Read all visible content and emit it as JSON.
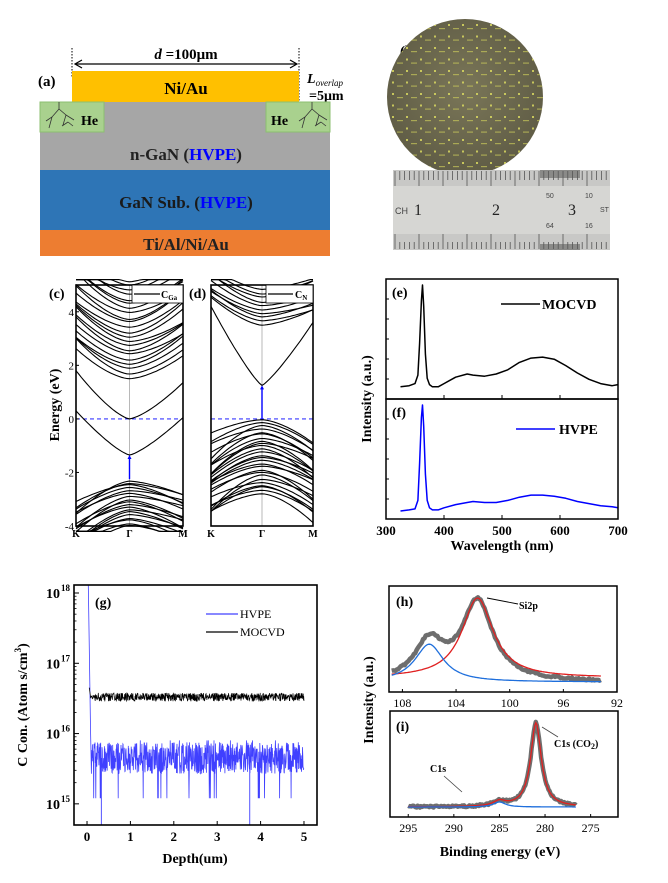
{
  "figure": {
    "panel_a": {
      "label": "(a)",
      "dimension_d": "d",
      "dimension_value": " =100μm",
      "overlap_L": "L",
      "overlap_sub": "overlap",
      "overlap_value": "=5μm",
      "layers": [
        {
          "name": "Ni/Au",
          "color": "#ffc000"
        },
        {
          "name": "n-GaN",
          "suffix_open": " (",
          "highlight": "HVPE",
          "suffix_close": ")",
          "color": "#a6a6a6"
        },
        {
          "name": "GaN Sub.",
          "suffix_open": " (",
          "highlight": "HVPE",
          "suffix_close": ")",
          "color": "#2e75b6"
        },
        {
          "name": "Ti/Al/Ni/Au",
          "color": "#ed7d31"
        }
      ],
      "implant_label": "He",
      "implant_color": "#a9d18e",
      "highlight_color": "#0000ff"
    },
    "panel_b": {
      "label": "(b)",
      "ruler_marks": [
        "CH",
        "1",
        "2",
        "3",
        "ST"
      ],
      "ruler_small": [
        "50",
        "10",
        "64",
        "16"
      ]
    }
  },
  "chart_data": [
    {
      "id": "c",
      "type": "line",
      "title": "(c)",
      "legend": "C",
      "legend_sub": "Ga",
      "ylabel": "Energy (eV)",
      "xticks": [
        "K",
        "Γ",
        "M"
      ],
      "yticks": [
        -4,
        -2,
        0,
        2,
        4
      ],
      "ylim": [
        -4,
        5
      ],
      "fermi_level": 0,
      "gap_arrow": {
        "from": -2.25,
        "to": -1.35
      },
      "cbm": -1.35,
      "vbm": -2.25,
      "defect_band_gamma": 0
    },
    {
      "id": "d",
      "type": "line",
      "title": "(d)",
      "legend": "C",
      "legend_sub": "N",
      "xticks": [
        "K",
        "Γ",
        "M"
      ],
      "ylim": [
        -4,
        5
      ],
      "fermi_level": 0,
      "gap_arrow": {
        "from": 0,
        "to": 1.25
      },
      "cbm": 1.25,
      "vbm": 0
    },
    {
      "id": "e",
      "type": "line",
      "title": "(e)",
      "series": [
        {
          "name": "MOCVD",
          "color": "#000000",
          "x": [
            325,
            340,
            350,
            355,
            358,
            361,
            363,
            365,
            368,
            371,
            375,
            380,
            390,
            400,
            420,
            440,
            450,
            470,
            490,
            510,
            530,
            550,
            570,
            590,
            610,
            630,
            650,
            670,
            690,
            700
          ],
          "y": [
            0.04,
            0.05,
            0.07,
            0.15,
            0.45,
            0.85,
            1.0,
            0.8,
            0.35,
            0.12,
            0.06,
            0.04,
            0.04,
            0.07,
            0.13,
            0.16,
            0.15,
            0.14,
            0.16,
            0.2,
            0.27,
            0.31,
            0.32,
            0.3,
            0.24,
            0.17,
            0.11,
            0.07,
            0.05,
            0.06
          ]
        }
      ],
      "ylabel": "Intensity (a.u.)"
    },
    {
      "id": "f",
      "type": "line",
      "title": "(f)",
      "series": [
        {
          "name": "HVPE",
          "color": "#0000ff",
          "x": [
            325,
            340,
            350,
            355,
            358,
            361,
            363,
            365,
            368,
            371,
            375,
            380,
            390,
            400,
            420,
            440,
            450,
            470,
            490,
            510,
            530,
            550,
            570,
            590,
            610,
            630,
            650,
            670,
            690,
            700
          ],
          "y": [
            0.0,
            0.01,
            0.02,
            0.1,
            0.45,
            0.88,
            1.0,
            0.8,
            0.35,
            0.1,
            0.03,
            0.01,
            0.01,
            0.03,
            0.06,
            0.08,
            0.09,
            0.08,
            0.08,
            0.1,
            0.13,
            0.15,
            0.15,
            0.14,
            0.12,
            0.09,
            0.07,
            0.05,
            0.04,
            0.03
          ]
        }
      ],
      "xlabel": "Wavelength (nm)",
      "xlim": [
        300,
        700
      ],
      "xticks": [
        300,
        400,
        500,
        600,
        700
      ]
    },
    {
      "id": "g",
      "type": "line",
      "title": "(g)",
      "xlabel": "Depth(um)",
      "ylabel": "C Con. (Atoms/cm³)",
      "ylabel_main": "C Con. (Atom s/cm",
      "ylabel_sup": "3",
      "ylabel_close": ")",
      "yscale": "log",
      "ylim": [
        500000000000000.0,
        1.3e+18
      ],
      "xlim": [
        -0.3,
        5.3
      ],
      "xticks": [
        0,
        1,
        2,
        3,
        4,
        5
      ],
      "yticks": [
        {
          "base": "10",
          "exp": "15"
        },
        {
          "base": "10",
          "exp": "16"
        },
        {
          "base": "10",
          "exp": "17"
        },
        {
          "base": "10",
          "exp": "18"
        }
      ],
      "series": [
        {
          "name": "HVPE",
          "color": "#4040ff",
          "surface_peak": 1.3e+18,
          "baseline": 4500000000000000.0,
          "noise_range": [
            2000000000000000.0,
            8000000000000000.0
          ],
          "x_range": [
            0.03,
            5.0
          ]
        },
        {
          "name": "MOCVD",
          "color": "#000000",
          "surface_peak": 4.5e+16,
          "baseline": 3.3e+16,
          "noise_range": [
            2.7e+16,
            4.2e+16
          ],
          "x_range": [
            0.05,
            5.0
          ]
        }
      ]
    },
    {
      "id": "h",
      "type": "line",
      "title": "(h)",
      "annotation": "Si2p",
      "xlim": [
        109,
        92
      ],
      "xticks": [
        108,
        104,
        100,
        96,
        92
      ],
      "peaks": [
        {
          "name": "fit_high",
          "center": 106.0,
          "height": 0.45,
          "color": "#1f6fdc"
        },
        {
          "name": "fit_main",
          "center": 102.4,
          "height": 0.95,
          "color": "#e02020"
        }
      ],
      "data_range": [
        108.8,
        93.2
      ],
      "data_color": "#555555"
    },
    {
      "id": "i",
      "type": "line",
      "title": "(i)",
      "xlabel": "Binding energy (eV)",
      "ylabel": "Intensity (a.u.)",
      "xlim": [
        297,
        272
      ],
      "xticks": [
        295,
        290,
        285,
        280,
        275
      ],
      "annotations": [
        {
          "text": "C1s",
          "x": 285
        },
        {
          "text": "C1s (CO",
          "sub": "2",
          "close": ")",
          "x": 281
        }
      ],
      "peaks": [
        {
          "name": "C1s",
          "center": 285,
          "height": 0.06,
          "color": "#1f6fdc"
        },
        {
          "name": "C1s_CO2",
          "center": 281.0,
          "height": 1.0,
          "color": "#e02020"
        }
      ],
      "data_range": [
        295,
        276.5
      ],
      "data_color": "#555555"
    }
  ]
}
